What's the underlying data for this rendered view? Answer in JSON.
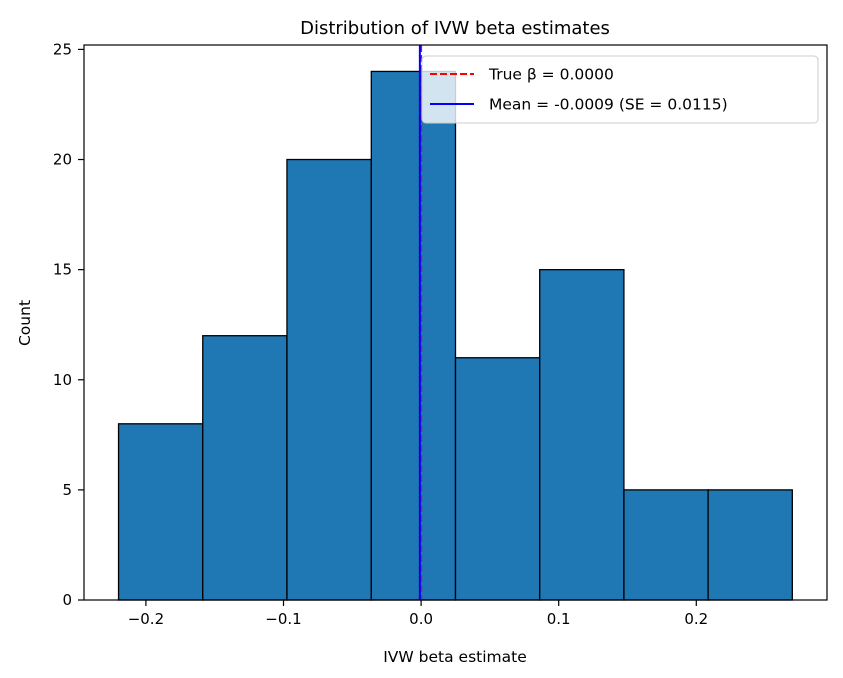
{
  "chart_data": {
    "type": "bar",
    "title": "Distribution of IVW beta estimates",
    "xlabel": "IVW beta estimate",
    "ylabel": "Count",
    "xlim": [
      -0.245,
      0.295
    ],
    "ylim": [
      0,
      25.2
    ],
    "xticks": [
      -0.2,
      -0.1,
      0.0,
      0.1,
      0.2
    ],
    "xtick_labels": [
      "−0.2",
      "−0.1",
      "0.0",
      "0.1",
      "0.2"
    ],
    "yticks": [
      0,
      5,
      10,
      15,
      20,
      25
    ],
    "ytick_labels": [
      "0",
      "5",
      "10",
      "15",
      "20",
      "25"
    ],
    "bins": [
      {
        "start": -0.2199,
        "end": -0.1587,
        "count": 8
      },
      {
        "start": -0.1587,
        "end": -0.0975,
        "count": 12
      },
      {
        "start": -0.0975,
        "end": -0.0362,
        "count": 20
      },
      {
        "start": -0.0362,
        "end": 0.025,
        "count": 24
      },
      {
        "start": 0.025,
        "end": 0.0862,
        "count": 11
      },
      {
        "start": 0.0862,
        "end": 0.1474,
        "count": 15
      },
      {
        "start": 0.1474,
        "end": 0.2086,
        "count": 5
      },
      {
        "start": 0.2086,
        "end": 0.2698,
        "count": 5
      }
    ],
    "bar_color": "#1f77b4",
    "bar_edge_color": "#000000",
    "grid": false,
    "legend_position": "upper right",
    "lines": [
      {
        "label": "True β = 0.0000",
        "x": 0.0,
        "color": "#ff0000",
        "style": "dashed"
      },
      {
        "label": "Mean = -0.0009 (SE = 0.0115)",
        "x": -0.0009,
        "color": "#0000ff",
        "style": "solid"
      }
    ]
  }
}
